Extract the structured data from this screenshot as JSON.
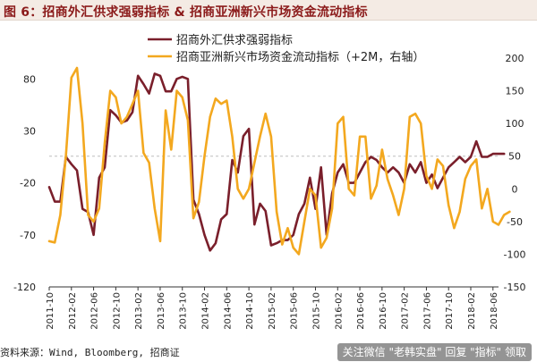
{
  "title": "图 6：招商外汇供求强弱指标 & 招商亚洲新兴市场资金流动指标",
  "source": "资料来源：Wind, Bloomberg, 招商证",
  "watermark": "关注微信 \"老韩实盘\" 回复 \"指标\" 领取",
  "colors": {
    "series1": "#7a1f2b",
    "series2": "#f3a81f",
    "title": "#8b1a1a",
    "title_bg": "#f4ebe4"
  },
  "chart_data": {
    "type": "line",
    "x_tick_labels": [
      "2011-10",
      "2012-02",
      "2012-06",
      "2012-10",
      "2013-02",
      "2013-06",
      "2013-10",
      "2014-02",
      "2014-06",
      "2014-10",
      "2015-02",
      "2015-06",
      "2015-10",
      "2016-02",
      "2016-06",
      "2016-10",
      "2017-02",
      "2017-06",
      "2017-10",
      "2018-02",
      "2018-06"
    ],
    "y_left": {
      "ticks": [
        80,
        30,
        -20,
        -70,
        -120
      ],
      "range": [
        -120,
        100
      ]
    },
    "y_right": {
      "ticks": [
        200,
        150,
        100,
        50,
        0,
        -50,
        -100,
        -150
      ],
      "range": [
        -150,
        200
      ]
    },
    "reference_line": {
      "axis": "right",
      "value": 50
    },
    "legend_placement": "top-center",
    "series": [
      {
        "name": "招商外汇供求强弱指标",
        "axis": "left",
        "start": "2011-10",
        "frequency": "monthly",
        "values": [
          -24,
          -38,
          -38,
          5,
          -2,
          -8,
          -45,
          -48,
          -70,
          -15,
          -5,
          50,
          45,
          38,
          40,
          48,
          83,
          75,
          66,
          85,
          83,
          68,
          68,
          80,
          82,
          80,
          -36,
          -50,
          -70,
          -85,
          -78,
          -55,
          -50,
          2,
          -10,
          25,
          32,
          -60,
          -40,
          -47,
          -80,
          -78,
          -75,
          -75,
          -70,
          -50,
          -40,
          -15,
          -45,
          -5,
          -70,
          -30,
          -10,
          -2,
          -20,
          -20,
          -10,
          0,
          5,
          2,
          -5,
          -10,
          -5,
          -10,
          -20,
          -2,
          -10,
          0,
          -20,
          -12,
          -25,
          -15,
          -5,
          0,
          5,
          0,
          5,
          20,
          5,
          5,
          8,
          8,
          8
        ]
      },
      {
        "name": "招商亚洲新兴市场资金流动指标（+2M，右轴）",
        "axis": "right",
        "start": "2011-10",
        "frequency": "monthly",
        "values": [
          -80,
          -82,
          -40,
          50,
          170,
          185,
          100,
          -40,
          -50,
          -30,
          70,
          150,
          140,
          100,
          110,
          130,
          150,
          55,
          40,
          -30,
          -80,
          120,
          60,
          150,
          140,
          105,
          -45,
          -20,
          50,
          110,
          138,
          130,
          135,
          80,
          0,
          -15,
          0,
          40,
          80,
          115,
          80,
          -35,
          -85,
          -60,
          -90,
          -100,
          -50,
          0,
          -10,
          -90,
          -75,
          -30,
          100,
          110,
          0,
          -10,
          80,
          80,
          -15,
          5,
          60,
          15,
          -10,
          -40,
          0,
          110,
          115,
          100,
          20,
          0,
          45,
          35,
          -25,
          -60,
          -35,
          15,
          35,
          45,
          -30,
          0,
          -50,
          -55,
          -40,
          -35
        ]
      }
    ]
  }
}
